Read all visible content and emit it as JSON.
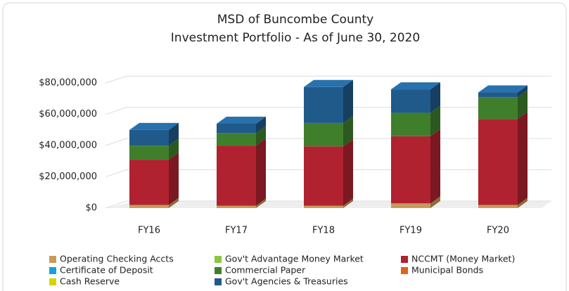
{
  "chart_data": {
    "type": "bar3d_stacked",
    "title": "MSD of Buncombe County",
    "subtitle": "Investment Portfolio - As of June 30, 2020",
    "categories": [
      "FY16",
      "FY17",
      "FY18",
      "FY19",
      "FY20"
    ],
    "series": [
      {
        "name": "Operating Checking Accts",
        "color": "#c89a5a",
        "values": [
          2000000,
          1500000,
          1500000,
          3000000,
          2000000
        ]
      },
      {
        "name": "Gov't Advantage Money Market",
        "color": "#8cc63f",
        "values": [
          0,
          0,
          0,
          0,
          0
        ]
      },
      {
        "name": "NCCMT (Money Market)",
        "color": "#b0222f",
        "values": [
          29000000,
          38500000,
          38000000,
          43000000,
          55000000
        ]
      },
      {
        "name": "Certificate of Deposit",
        "color": "#1aa0d8",
        "values": [
          0,
          0,
          0,
          0,
          0
        ]
      },
      {
        "name": "Commercial  Paper",
        "color": "#3f7f2c",
        "values": [
          9000000,
          8000000,
          15000000,
          15000000,
          14000000
        ]
      },
      {
        "name": "Municipal Bonds",
        "color": "#e0621a",
        "values": [
          0,
          0,
          0,
          0,
          0
        ]
      },
      {
        "name": "Cash  Reserve",
        "color": "#d6d400",
        "values": [
          0,
          0,
          0,
          0,
          0
        ]
      },
      {
        "name": "Gov't Agencies & Treasuries",
        "color": "#1f5a8a",
        "values": [
          10000000,
          6000000,
          23000000,
          15000000,
          3000000
        ]
      }
    ],
    "ylim": [
      0,
      90000000
    ],
    "yticks": [
      {
        "value": 0,
        "label": "$0"
      },
      {
        "value": 20000000,
        "label": "$20,000,000"
      },
      {
        "value": 40000000,
        "label": "$40,000,000"
      },
      {
        "value": 60000000,
        "label": "$60,000,000"
      },
      {
        "value": 80000000,
        "label": "$80,000,000"
      }
    ],
    "grid": true
  }
}
